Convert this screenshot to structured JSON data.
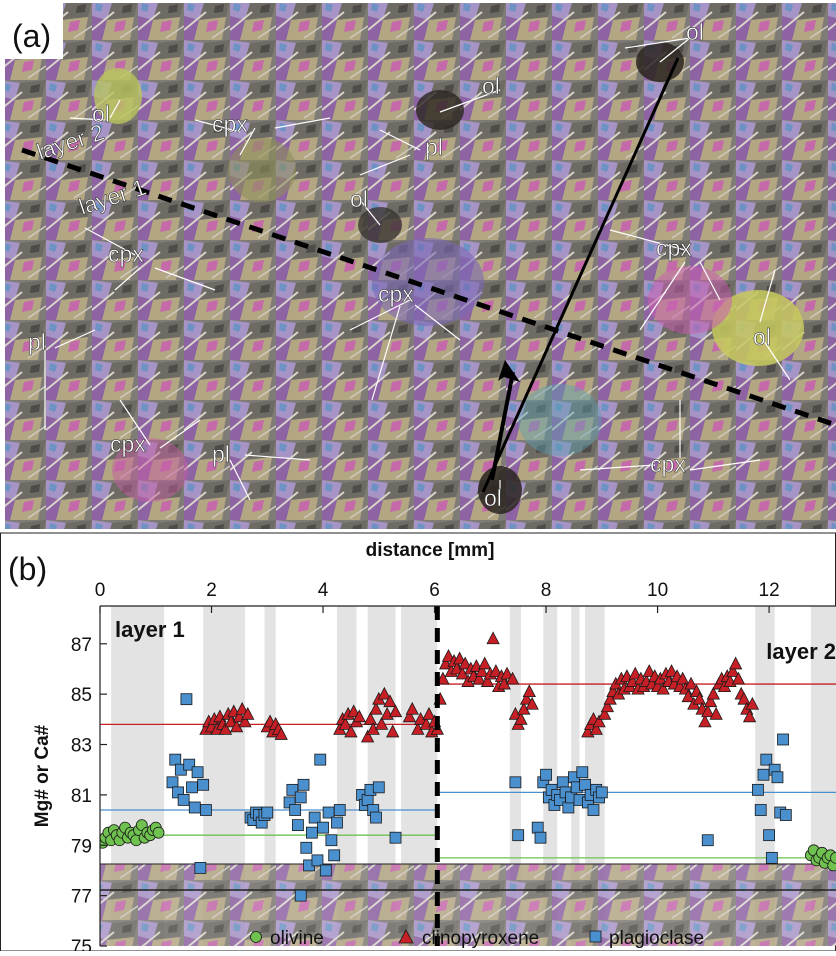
{
  "panel_a": {
    "label": "(a)",
    "layer_labels": [
      "layer 2",
      "layer 1"
    ],
    "mineral_labels": [
      {
        "text": "ol"
      },
      {
        "text": "ol"
      },
      {
        "text": "ol"
      },
      {
        "text": "ol"
      },
      {
        "text": "ol"
      },
      {
        "text": "ol"
      },
      {
        "text": "cpx"
      },
      {
        "text": "cpx"
      },
      {
        "text": "cpx"
      },
      {
        "text": "cpx"
      },
      {
        "text": "cpx"
      },
      {
        "text": "cpx"
      },
      {
        "text": "pl"
      },
      {
        "text": "pl"
      },
      {
        "text": "pl"
      }
    ]
  },
  "panel_b": {
    "label": "(b)"
  },
  "chart_data": {
    "type": "scatter",
    "title": "",
    "xlabel": "distance [mm]",
    "ylabel": "Mg# or Ca#",
    "xlim": [
      0,
      13.2
    ],
    "ylim": [
      75,
      88.5
    ],
    "x_ticks": [
      0,
      2,
      4,
      6,
      8,
      10,
      12
    ],
    "y_ticks": [
      75,
      77,
      79,
      81,
      83,
      85,
      87
    ],
    "grid": false,
    "legend_position": "bottom",
    "layer_boundary_x": 6.05,
    "annotations": [
      "layer 1",
      "layer 2"
    ],
    "gray_bands": [
      [
        0.2,
        1.15
      ],
      [
        1.85,
        2.6
      ],
      [
        2.95,
        3.15
      ],
      [
        4.25,
        4.6
      ],
      [
        4.8,
        5.3
      ],
      [
        5.4,
        6.05
      ],
      [
        7.35,
        7.55
      ],
      [
        7.95,
        8.2
      ],
      [
        8.45,
        8.6
      ],
      [
        8.7,
        9.05
      ],
      [
        11.75,
        12.1
      ],
      [
        12.75,
        13.2
      ]
    ],
    "series": [
      {
        "name": "olivine",
        "marker": "circle",
        "color": "#6fc24f",
        "mean_layer1": 79.4,
        "mean_layer2": 78.5,
        "points": [
          [
            0.05,
            79.1
          ],
          [
            0.1,
            79.3
          ],
          [
            0.15,
            79.5
          ],
          [
            0.2,
            79.2
          ],
          [
            0.25,
            79.6
          ],
          [
            0.3,
            79.4
          ],
          [
            0.35,
            79.2
          ],
          [
            0.4,
            79.5
          ],
          [
            0.45,
            79.7
          ],
          [
            0.5,
            79.3
          ],
          [
            0.55,
            79.5
          ],
          [
            0.6,
            79.4
          ],
          [
            0.65,
            79.2
          ],
          [
            0.7,
            79.6
          ],
          [
            0.75,
            79.8
          ],
          [
            0.8,
            79.3
          ],
          [
            0.85,
            79.5
          ],
          [
            0.9,
            79.4
          ],
          [
            0.95,
            79.6
          ],
          [
            1.0,
            79.7
          ],
          [
            1.05,
            79.5
          ],
          [
            12.75,
            78.6
          ],
          [
            12.8,
            78.8
          ],
          [
            12.85,
            78.4
          ],
          [
            12.9,
            78.5
          ],
          [
            12.95,
            78.7
          ],
          [
            13.0,
            78.3
          ],
          [
            13.05,
            78.5
          ],
          [
            13.1,
            78.6
          ],
          [
            13.15,
            78.2
          ],
          [
            13.2,
            78.5
          ]
        ]
      },
      {
        "name": "clinopyroxene",
        "marker": "triangle",
        "color": "#c62026",
        "mean_layer1": 83.8,
        "mean_layer2": 85.4,
        "points": [
          [
            1.9,
            83.6
          ],
          [
            1.95,
            83.9
          ],
          [
            2.0,
            83.7
          ],
          [
            2.05,
            84.0
          ],
          [
            2.1,
            83.6
          ],
          [
            2.15,
            84.1
          ],
          [
            2.2,
            83.8
          ],
          [
            2.25,
            83.6
          ],
          [
            2.3,
            84.2
          ],
          [
            2.35,
            83.9
          ],
          [
            2.4,
            84.3
          ],
          [
            2.45,
            83.7
          ],
          [
            2.5,
            84.1
          ],
          [
            2.55,
            84.4
          ],
          [
            2.6,
            83.9
          ],
          [
            2.65,
            84.2
          ],
          [
            3.0,
            83.7
          ],
          [
            3.05,
            83.9
          ],
          [
            3.1,
            83.5
          ],
          [
            3.15,
            83.8
          ],
          [
            3.2,
            83.6
          ],
          [
            3.25,
            83.4
          ],
          [
            4.3,
            83.6
          ],
          [
            4.35,
            84.0
          ],
          [
            4.4,
            83.8
          ],
          [
            4.45,
            84.2
          ],
          [
            4.5,
            83.5
          ],
          [
            4.55,
            84.3
          ],
          [
            4.6,
            83.9
          ],
          [
            4.65,
            84.1
          ],
          [
            4.8,
            83.3
          ],
          [
            4.85,
            84.0
          ],
          [
            4.9,
            83.6
          ],
          [
            4.95,
            84.4
          ],
          [
            5.0,
            84.8
          ],
          [
            5.05,
            83.8
          ],
          [
            5.1,
            85.0
          ],
          [
            5.15,
            84.2
          ],
          [
            5.2,
            84.7
          ],
          [
            5.25,
            83.5
          ],
          [
            5.3,
            84.3
          ],
          [
            5.55,
            84.1
          ],
          [
            5.6,
            84.4
          ],
          [
            5.7,
            83.6
          ],
          [
            5.75,
            84.0
          ],
          [
            5.85,
            83.8
          ],
          [
            5.9,
            84.2
          ],
          [
            5.95,
            83.5
          ],
          [
            6.0,
            83.9
          ],
          [
            6.05,
            83.6
          ],
          [
            6.1,
            84.8
          ],
          [
            6.15,
            85.6
          ],
          [
            6.2,
            86.2
          ],
          [
            6.25,
            86.5
          ],
          [
            6.3,
            85.9
          ],
          [
            6.35,
            86.3
          ],
          [
            6.4,
            86.0
          ],
          [
            6.45,
            86.4
          ],
          [
            6.5,
            85.8
          ],
          [
            6.55,
            86.2
          ],
          [
            6.6,
            85.5
          ],
          [
            6.65,
            86.0
          ],
          [
            6.7,
            85.7
          ],
          [
            6.75,
            86.1
          ],
          [
            6.8,
            85.6
          ],
          [
            6.85,
            85.9
          ],
          [
            6.9,
            86.2
          ],
          [
            6.95,
            85.5
          ],
          [
            7.0,
            85.8
          ],
          [
            7.05,
            87.2
          ],
          [
            7.1,
            85.9
          ],
          [
            7.15,
            85.3
          ],
          [
            7.2,
            85.7
          ],
          [
            7.25,
            85.4
          ],
          [
            7.3,
            85.8
          ],
          [
            7.4,
            85.6
          ],
          [
            7.45,
            84.2
          ],
          [
            7.5,
            83.8
          ],
          [
            7.55,
            84.0
          ],
          [
            7.6,
            84.4
          ],
          [
            7.65,
            84.8
          ],
          [
            7.7,
            85.1
          ],
          [
            7.75,
            84.6
          ],
          [
            8.75,
            83.5
          ],
          [
            8.8,
            83.8
          ],
          [
            8.85,
            84.0
          ],
          [
            8.9,
            83.6
          ],
          [
            8.95,
            83.9
          ],
          [
            9.05,
            84.2
          ],
          [
            9.1,
            84.5
          ],
          [
            9.15,
            84.8
          ],
          [
            9.2,
            85.1
          ],
          [
            9.25,
            85.4
          ],
          [
            9.3,
            85.0
          ],
          [
            9.35,
            85.6
          ],
          [
            9.4,
            85.2
          ],
          [
            9.45,
            85.7
          ],
          [
            9.5,
            85.3
          ],
          [
            9.55,
            85.5
          ],
          [
            9.6,
            85.8
          ],
          [
            9.65,
            85.2
          ],
          [
            9.7,
            85.6
          ],
          [
            9.75,
            85.3
          ],
          [
            9.8,
            85.5
          ],
          [
            9.85,
            85.9
          ],
          [
            9.9,
            85.4
          ],
          [
            9.95,
            85.7
          ],
          [
            10.0,
            85.3
          ],
          [
            10.05,
            85.6
          ],
          [
            10.1,
            85.2
          ],
          [
            10.15,
            85.8
          ],
          [
            10.2,
            85.5
          ],
          [
            10.25,
            85.9
          ],
          [
            10.3,
            85.4
          ],
          [
            10.35,
            85.7
          ],
          [
            10.4,
            85.3
          ],
          [
            10.45,
            85.6
          ],
          [
            10.5,
            85.2
          ],
          [
            10.55,
            84.9
          ],
          [
            10.6,
            85.4
          ],
          [
            10.65,
            84.6
          ],
          [
            10.7,
            85.1
          ],
          [
            10.75,
            84.8
          ],
          [
            10.8,
            84.4
          ],
          [
            10.85,
            83.9
          ],
          [
            10.9,
            84.3
          ],
          [
            10.95,
            84.7
          ],
          [
            11.0,
            85.0
          ],
          [
            11.05,
            84.2
          ],
          [
            11.1,
            85.4
          ],
          [
            11.15,
            85.6
          ],
          [
            11.2,
            85.3
          ],
          [
            11.25,
            85.7
          ],
          [
            11.3,
            85.5
          ],
          [
            11.35,
            85.9
          ],
          [
            11.4,
            86.2
          ],
          [
            11.45,
            85.6
          ],
          [
            11.5,
            85.0
          ],
          [
            11.55,
            84.8
          ],
          [
            11.6,
            84.4
          ],
          [
            11.65,
            84.1
          ],
          [
            11.7,
            84.6
          ]
        ]
      },
      {
        "name": "plagioclase",
        "marker": "square",
        "color": "#4a8fce",
        "mean_layer1": 80.4,
        "mean_layer2": 81.1,
        "points": [
          [
            1.3,
            81.5
          ],
          [
            1.35,
            82.4
          ],
          [
            1.4,
            81.1
          ],
          [
            1.45,
            82.0
          ],
          [
            1.5,
            80.8
          ],
          [
            1.55,
            84.8
          ],
          [
            1.6,
            82.2
          ],
          [
            1.65,
            81.3
          ],
          [
            1.7,
            80.5
          ],
          [
            1.75,
            81.9
          ],
          [
            1.8,
            78.1
          ],
          [
            1.85,
            81.4
          ],
          [
            1.9,
            80.4
          ],
          [
            2.7,
            80.1
          ],
          [
            2.75,
            80.0
          ],
          [
            2.8,
            80.3
          ],
          [
            2.85,
            80.2
          ],
          [
            2.9,
            79.9
          ],
          [
            2.95,
            80.2
          ],
          [
            3.0,
            80.3
          ],
          [
            3.4,
            80.7
          ],
          [
            3.45,
            81.2
          ],
          [
            3.5,
            80.4
          ],
          [
            3.55,
            79.8
          ],
          [
            3.6,
            80.9
          ],
          [
            3.65,
            81.4
          ],
          [
            3.7,
            78.9
          ],
          [
            3.75,
            78.2
          ],
          [
            3.8,
            79.5
          ],
          [
            3.85,
            80.1
          ],
          [
            3.9,
            78.4
          ],
          [
            3.95,
            82.4
          ],
          [
            4.0,
            79.7
          ],
          [
            4.05,
            78.0
          ],
          [
            4.1,
            80.3
          ],
          [
            4.15,
            79.2
          ],
          [
            4.2,
            78.6
          ],
          [
            4.25,
            79.9
          ],
          [
            4.3,
            80.4
          ],
          [
            3.6,
            77.0
          ],
          [
            4.7,
            81.0
          ],
          [
            4.75,
            80.6
          ],
          [
            4.8,
            80.8
          ],
          [
            4.85,
            81.2
          ],
          [
            4.9,
            80.4
          ],
          [
            4.95,
            80.1
          ],
          [
            5.0,
            81.3
          ],
          [
            5.3,
            79.3
          ],
          [
            7.45,
            81.5
          ],
          [
            7.5,
            79.4
          ],
          [
            7.85,
            79.7
          ],
          [
            7.9,
            79.3
          ],
          [
            7.95,
            81.5
          ],
          [
            8.0,
            81.8
          ],
          [
            8.05,
            80.9
          ],
          [
            8.1,
            81.2
          ],
          [
            8.15,
            80.6
          ],
          [
            8.2,
            81.0
          ],
          [
            8.25,
            80.8
          ],
          [
            8.3,
            81.5
          ],
          [
            8.35,
            81.1
          ],
          [
            8.4,
            80.5
          ],
          [
            8.45,
            80.9
          ],
          [
            8.5,
            81.7
          ],
          [
            8.55,
            81.3
          ],
          [
            8.6,
            80.8
          ],
          [
            8.65,
            81.9
          ],
          [
            8.7,
            81.4
          ],
          [
            8.75,
            80.7
          ],
          [
            8.8,
            81.0
          ],
          [
            8.85,
            80.4
          ],
          [
            8.9,
            81.2
          ],
          [
            8.95,
            80.9
          ],
          [
            9.0,
            81.1
          ],
          [
            10.9,
            79.2
          ],
          [
            11.8,
            81.2
          ],
          [
            11.85,
            80.4
          ],
          [
            11.9,
            81.8
          ],
          [
            11.95,
            82.4
          ],
          [
            12.0,
            79.4
          ],
          [
            12.05,
            78.5
          ],
          [
            12.1,
            82.0
          ],
          [
            12.15,
            81.7
          ],
          [
            12.2,
            80.3
          ],
          [
            12.25,
            83.2
          ],
          [
            12.3,
            80.2
          ]
        ]
      }
    ]
  }
}
